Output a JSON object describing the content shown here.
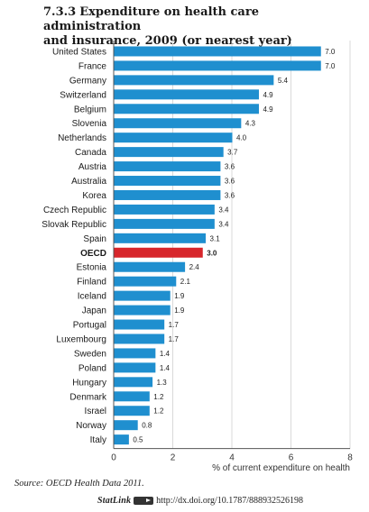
{
  "header": {
    "number": "7.3.3",
    "title_line1": "Expenditure on health care administration",
    "title_line2": "and insurance, 2009 (or nearest year)"
  },
  "footer": {
    "source": "Source: OECD Health Data 2011.",
    "statlink_label": "StatLink",
    "statlink_url": "http://dx.doi.org/10.1787/888932526198"
  },
  "colors": {
    "bar": "#1f8fcf",
    "highlight": "#d7262b",
    "grid": "#d9d9d9",
    "axis": "#555555"
  },
  "chart_data": {
    "type": "bar",
    "orientation": "horizontal",
    "title": "Expenditure on health care administration and insurance, 2009 (or nearest year)",
    "xlabel": "% of current expenditure on health",
    "xlim": [
      0,
      8
    ],
    "xticks": [
      0,
      2,
      4,
      6,
      8
    ],
    "grid": true,
    "highlight": "OECD",
    "categories": [
      "United States",
      "France",
      "Germany",
      "Switzerland",
      "Belgium",
      "Slovenia",
      "Netherlands",
      "Canada",
      "Austria",
      "Australia",
      "Korea",
      "Czech Republic",
      "Slovak Republic",
      "Spain",
      "OECD",
      "Estonia",
      "Finland",
      "Iceland",
      "Japan",
      "Portugal",
      "Luxembourg",
      "Sweden",
      "Poland",
      "Hungary",
      "Denmark",
      "Israel",
      "Norway",
      "Italy"
    ],
    "values": [
      7.0,
      7.0,
      5.4,
      4.9,
      4.9,
      4.3,
      4.0,
      3.7,
      3.6,
      3.6,
      3.6,
      3.4,
      3.4,
      3.1,
      3.0,
      2.4,
      2.1,
      1.9,
      1.9,
      1.7,
      1.7,
      1.4,
      1.4,
      1.3,
      1.2,
      1.2,
      0.8,
      0.5
    ],
    "value_labels": [
      "7.0",
      "7.0",
      "5.4",
      "4.9",
      "4.9",
      "4.3",
      "4.0",
      "3.7",
      "3.6",
      "3.6",
      "3.6",
      "3.4",
      "3.4",
      "3.1",
      "3.0",
      "2.4",
      "2.1",
      "1.9",
      "1.9",
      "1.7",
      "1.7",
      "1.4",
      "1.4",
      "1.3",
      "1.2",
      "1.2",
      "0.8",
      "0.5"
    ]
  }
}
